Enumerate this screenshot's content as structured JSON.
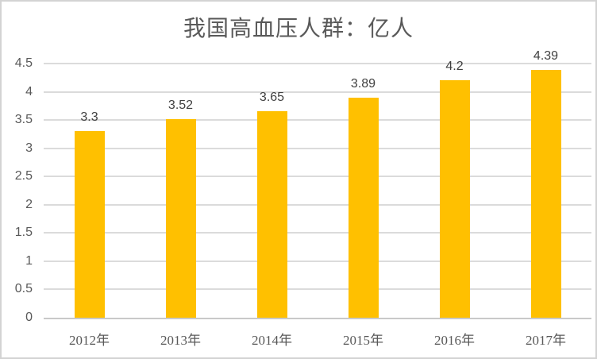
{
  "chart_data": {
    "type": "bar",
    "title": "我国高血压人群：亿人",
    "categories": [
      "2012年",
      "2013年",
      "2014年",
      "2015年",
      "2016年",
      "2017年"
    ],
    "values": [
      3.3,
      3.52,
      3.65,
      3.89,
      4.2,
      4.39
    ],
    "value_labels": [
      "3.3",
      "3.52",
      "3.65",
      "3.89",
      "4.2",
      "4.39"
    ],
    "y_ticks": [
      0,
      0.5,
      1,
      1.5,
      2,
      2.5,
      3,
      3.5,
      4,
      4.5
    ],
    "y_tick_labels": [
      "0",
      "0.5",
      "1",
      "1.5",
      "2",
      "2.5",
      "3",
      "3.5",
      "4",
      "4.5"
    ],
    "ylim": [
      0,
      4.5
    ],
    "xlabel": "",
    "ylabel": "",
    "grid": "horizontal",
    "legend": "none",
    "colors": {
      "bar": "#FFC000",
      "gridline": "#DBDBDB",
      "axis_line": "#C9C9C9",
      "tick_text": "#595959",
      "value_text": "#404040",
      "title_text": "#595959",
      "border": "#D3D3D3",
      "background": "#FFFFFF"
    }
  }
}
